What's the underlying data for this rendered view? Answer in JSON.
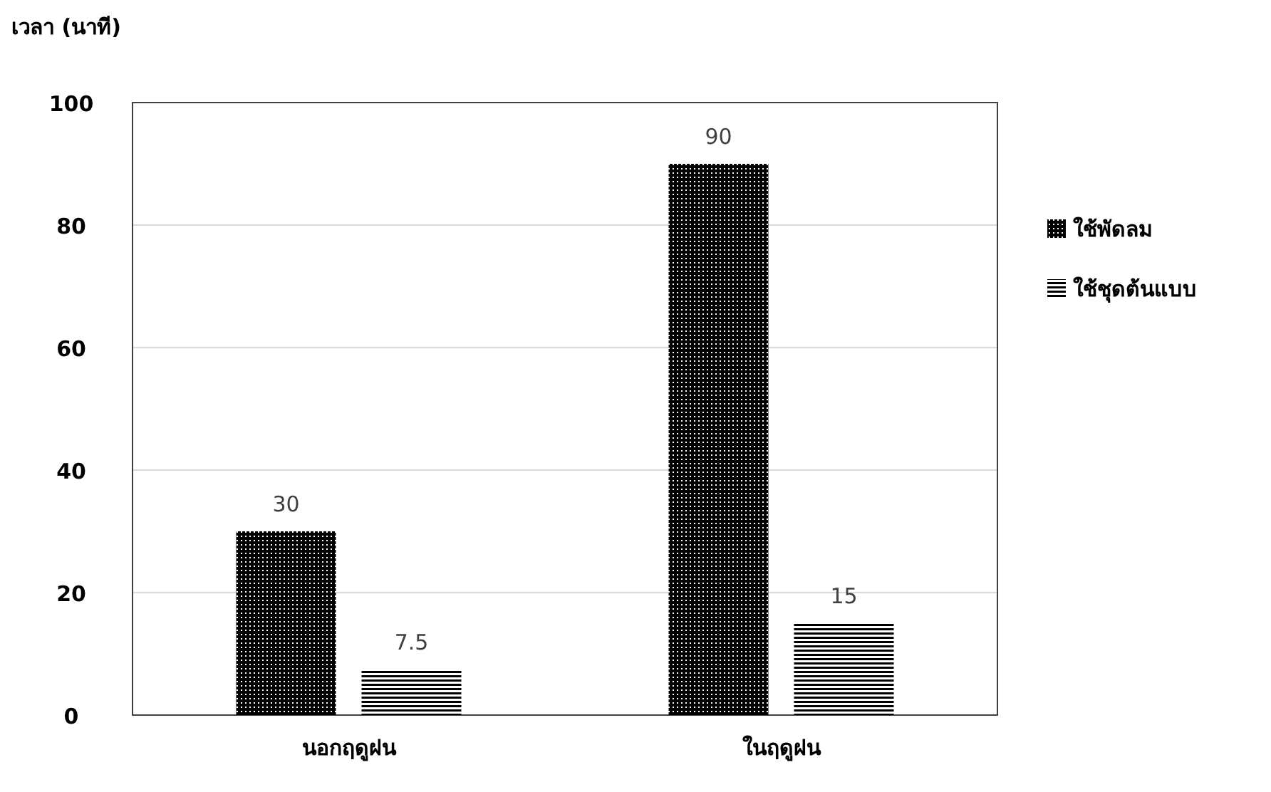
{
  "chart_data": {
    "type": "bar",
    "ylabel": "เวลา (นาที)",
    "categories": [
      "นอกฤดูฝน",
      "ในฤดูฝน"
    ],
    "series": [
      {
        "name": "ใช้พัดลม",
        "color": "#000000",
        "values": [
          30,
          90
        ]
      },
      {
        "name": "ใช้ชุดต้นแบบ",
        "color": "#000000",
        "values": [
          7.5,
          15
        ]
      }
    ],
    "ylim": [
      0,
      100
    ],
    "yticks": [
      0,
      20,
      40,
      60,
      80,
      100
    ],
    "grid": "y",
    "legend": "right",
    "data_labels": true
  }
}
